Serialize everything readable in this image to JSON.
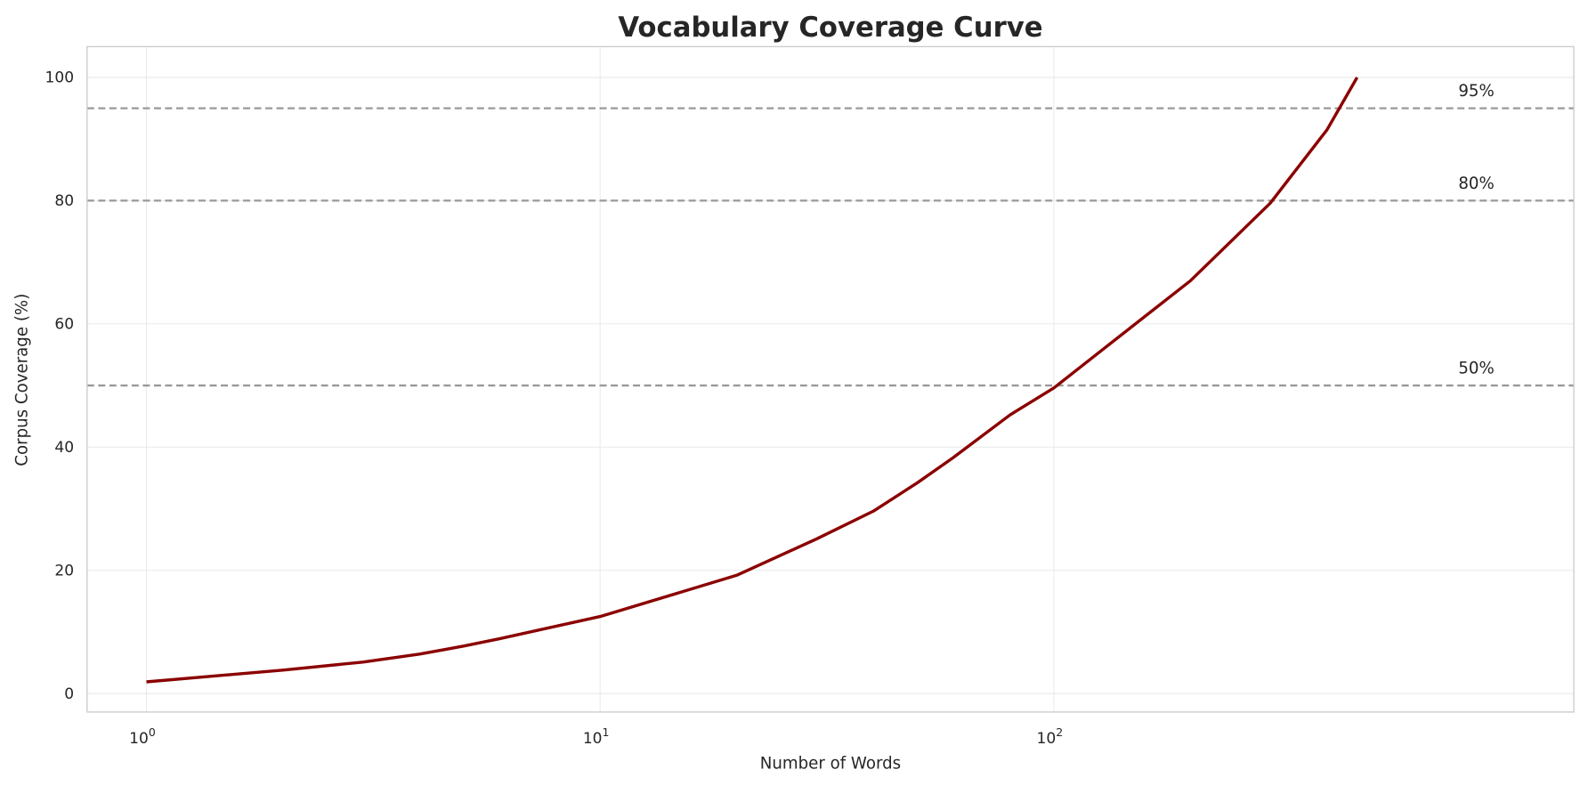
{
  "chart_data": {
    "type": "line",
    "title": "Vocabulary Coverage Curve",
    "xlabel": "Number of Words",
    "ylabel": "Corpus Coverage (%)",
    "xscale": "log",
    "xlim": [
      0.74,
      1400
    ],
    "ylim": [
      -3,
      105
    ],
    "grid": true,
    "x_ticks": [
      {
        "base": "10",
        "exp": "0",
        "value": 1
      },
      {
        "base": "10",
        "exp": "1",
        "value": 10
      },
      {
        "base": "10",
        "exp": "2",
        "value": 100
      }
    ],
    "y_ticks": [
      0,
      20,
      40,
      60,
      80,
      100
    ],
    "series": [
      {
        "color": "#8b0000",
        "x": [
          1,
          2,
          3,
          4,
          5,
          6,
          10,
          20,
          30,
          40,
          50,
          60,
          80,
          100,
          130,
          200,
          300,
          400,
          466
        ],
        "y": [
          1.9,
          3.8,
          5.1,
          6.4,
          7.7,
          8.9,
          12.5,
          19.2,
          25.1,
          29.6,
          34.2,
          38.3,
          45.2,
          49.6,
          56.2,
          67.0,
          79.6,
          91.5,
          100
        ]
      }
    ],
    "reference_lines": [
      {
        "y": 95,
        "label": "95%",
        "color": "#999999",
        "style": "dashed"
      },
      {
        "y": 80,
        "label": "80%",
        "color": "#999999",
        "style": "dashed"
      },
      {
        "y": 50,
        "label": "50%",
        "color": "#999999",
        "style": "dashed"
      }
    ]
  }
}
